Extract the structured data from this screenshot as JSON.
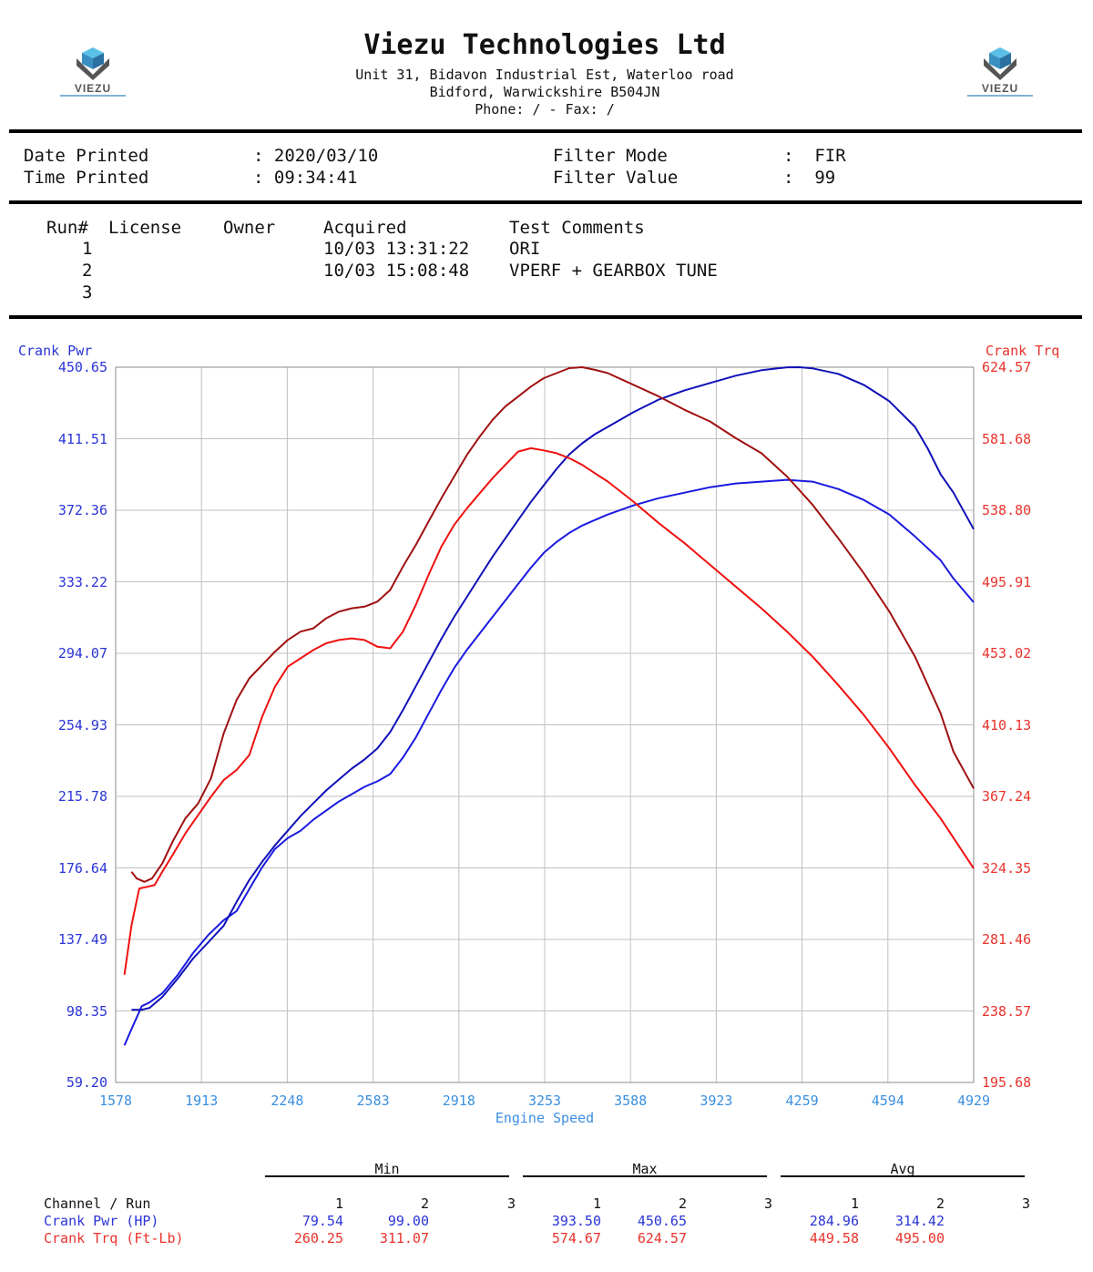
{
  "header": {
    "company": "Viezu Technologies Ltd",
    "address1": "Unit 31, Bidavon Industrial Est, Waterloo road",
    "address2": "Bidford, Warwickshire  B504JN",
    "phone": "Phone:  /  - Fax:  /",
    "logo_text": "VIEZU"
  },
  "info": {
    "date_label": "Date Printed",
    "date_value": ": 2020/03/10",
    "time_label": "Time Printed",
    "time_value": ": 09:34:41",
    "filter_mode_label": "Filter Mode",
    "filter_mode_value": ":  FIR",
    "filter_value_label": "Filter Value",
    "filter_value_value": ":  99"
  },
  "runs": {
    "headers": [
      "Run#",
      "License",
      "Owner",
      "Acquired",
      "Test Comments"
    ],
    "rows": [
      {
        "run": "1",
        "acquired": "10/03 13:31:22",
        "comment": "ORI"
      },
      {
        "run": "2",
        "acquired": "10/03 15:08:48",
        "comment": "VPERF + GEARBOX TUNE"
      },
      {
        "run": "3",
        "acquired": "",
        "comment": ""
      }
    ]
  },
  "colors": {
    "power_run1": "#1a1ae0",
    "power_run2": "#1010b8",
    "torque_run1": "#f01010",
    "torque_run2": "#a01010",
    "grid": "#c0c0c0"
  },
  "chart_data": {
    "type": "line",
    "xlabel": "Engine Speed",
    "ylabel_left": "Crank Pwr",
    "ylabel_right": "Crank Trq",
    "x_ticks": [
      "1578",
      "1913",
      "2248",
      "2583",
      "2918",
      "3253",
      "3588",
      "3923",
      "4259",
      "4594",
      "4929"
    ],
    "y_left_ticks": [
      "59.20",
      "98.35",
      "137.49",
      "176.64",
      "215.78",
      "254.93",
      "294.07",
      "333.22",
      "372.36",
      "411.51",
      "450.65"
    ],
    "y_right_ticks": [
      "195.68",
      "238.57",
      "281.46",
      "324.35",
      "367.24",
      "410.13",
      "453.02",
      "495.91",
      "538.80",
      "581.68",
      "624.57"
    ],
    "xlim": [
      1578,
      4929
    ],
    "ylim_left": [
      59.2,
      450.65
    ],
    "ylim_right": [
      195.68,
      624.57
    ],
    "grid": true,
    "series": [
      {
        "name": "Crank Pwr Run 1",
        "axis": "left",
        "color_key": "power_run1",
        "x": [
          1612,
          1645,
          1680,
          1710,
          1760,
          1820,
          1880,
          1940,
          2000,
          2050,
          2100,
          2150,
          2200,
          2250,
          2300,
          2350,
          2400,
          2450,
          2500,
          2550,
          2600,
          2650,
          2700,
          2750,
          2800,
          2850,
          2900,
          2950,
          3000,
          3050,
          3100,
          3150,
          3200,
          3250,
          3300,
          3350,
          3400,
          3450,
          3500,
          3600,
          3700,
          3800,
          3900,
          4000,
          4100,
          4200,
          4300,
          4400,
          4500,
          4600,
          4700,
          4800,
          4850,
          4929
        ],
        "y": [
          79.5,
          90,
          101,
          103,
          108,
          118,
          130,
          140,
          148,
          153,
          165,
          177,
          187,
          193,
          197,
          203,
          208,
          213,
          217,
          221,
          224,
          228,
          237,
          248,
          261,
          274,
          286,
          296,
          305,
          314,
          323,
          332,
          341,
          349,
          355,
          360,
          364,
          367,
          370,
          375,
          379,
          382,
          385,
          387,
          388,
          389,
          388,
          384,
          378,
          370,
          358,
          345,
          335,
          322
        ]
      },
      {
        "name": "Crank Pwr Run 2",
        "axis": "left",
        "color_key": "power_run2",
        "x": [
          1640,
          1680,
          1710,
          1760,
          1820,
          1880,
          1940,
          2000,
          2050,
          2100,
          2150,
          2200,
          2250,
          2300,
          2350,
          2400,
          2450,
          2500,
          2550,
          2600,
          2650,
          2700,
          2750,
          2800,
          2850,
          2900,
          2950,
          3000,
          3050,
          3100,
          3150,
          3200,
          3250,
          3300,
          3350,
          3400,
          3450,
          3500,
          3600,
          3700,
          3800,
          3900,
          4000,
          4100,
          4200,
          4250,
          4300,
          4400,
          4500,
          4600,
          4700,
          4750,
          4800,
          4850,
          4929
        ],
        "y": [
          99,
          99,
          100,
          106,
          116,
          127,
          136,
          145,
          158,
          170,
          180,
          189,
          197,
          205,
          212,
          219,
          225,
          231,
          236,
          242,
          251,
          263,
          276,
          289,
          302,
          314,
          325,
          336,
          347,
          357,
          367,
          377,
          386,
          395,
          403,
          409,
          414,
          418,
          426,
          433,
          438,
          442,
          446,
          449,
          450.6,
          450.65,
          450,
          447,
          441,
          432,
          418,
          406,
          392,
          382,
          362
        ]
      },
      {
        "name": "Crank Trq Run 1",
        "axis": "right",
        "color_key": "torque_run1",
        "x": [
          1612,
          1640,
          1670,
          1700,
          1730,
          1760,
          1800,
          1850,
          1900,
          1950,
          2000,
          2050,
          2100,
          2150,
          2200,
          2250,
          2300,
          2350,
          2400,
          2450,
          2500,
          2550,
          2600,
          2650,
          2700,
          2750,
          2800,
          2850,
          2900,
          2950,
          3000,
          3050,
          3100,
          3150,
          3200,
          3250,
          3300,
          3350,
          3400,
          3450,
          3500,
          3600,
          3700,
          3800,
          3900,
          4000,
          4100,
          4200,
          4300,
          4400,
          4500,
          4600,
          4700,
          4800,
          4929
        ],
        "y": [
          260.25,
          290,
          312,
          313,
          314,
          322,
          332,
          345,
          356,
          367,
          377,
          383,
          392,
          415,
          433,
          445,
          450,
          455,
          459,
          461,
          462,
          461,
          457,
          456,
          466,
          482,
          500,
          517,
          530,
          540,
          549,
          558,
          566,
          574,
          576,
          574.67,
          573,
          570,
          566,
          561,
          556,
          544,
          531,
          519,
          506,
          493,
          480,
          466,
          451,
          434,
          416,
          396,
          374,
          354,
          324
        ]
      },
      {
        "name": "Crank Trq Run 2",
        "axis": "right",
        "color_key": "torque_run2",
        "x": [
          1640,
          1660,
          1690,
          1720,
          1760,
          1800,
          1850,
          1900,
          1950,
          2000,
          2050,
          2100,
          2150,
          2200,
          2250,
          2300,
          2350,
          2400,
          2450,
          2500,
          2550,
          2600,
          2650,
          2700,
          2750,
          2800,
          2850,
          2900,
          2950,
          3000,
          3050,
          3100,
          3150,
          3200,
          3250,
          3300,
          3350,
          3400,
          3450,
          3500,
          3600,
          3700,
          3800,
          3900,
          4000,
          4100,
          4200,
          4300,
          4400,
          4500,
          4600,
          4700,
          4800,
          4850,
          4929
        ],
        "y": [
          322,
          318,
          316,
          318,
          327,
          340,
          354,
          363,
          378,
          405,
          425,
          438,
          446,
          454,
          461,
          466,
          468,
          474,
          478,
          480,
          481,
          484,
          491,
          505,
          518,
          532,
          546,
          559,
          572,
          583,
          593,
          601,
          607,
          613,
          618,
          621,
          624,
          624.57,
          623,
          621,
          614,
          607,
          599,
          592,
          582,
          573,
          559,
          542,
          522,
          501,
          478,
          451,
          417,
          394,
          372
        ]
      }
    ],
    "stats": {
      "group_labels": [
        "Min",
        "Max",
        "Avg"
      ],
      "channel_header": "Channel / Run",
      "run_numbers": [
        "1",
        "2",
        "3"
      ],
      "rows": [
        {
          "channel": "Crank Pwr (HP)",
          "min": [
            "79.54",
            "99.00",
            ""
          ],
          "max": [
            "393.50",
            "450.65",
            ""
          ],
          "avg": [
            "284.96",
            "314.42",
            ""
          ]
        },
        {
          "channel": "Crank Trq (Ft-Lb)",
          "min": [
            "260.25",
            "311.07",
            ""
          ],
          "max": [
            "574.67",
            "624.57",
            ""
          ],
          "avg": [
            "449.58",
            "495.00",
            ""
          ]
        }
      ]
    }
  }
}
